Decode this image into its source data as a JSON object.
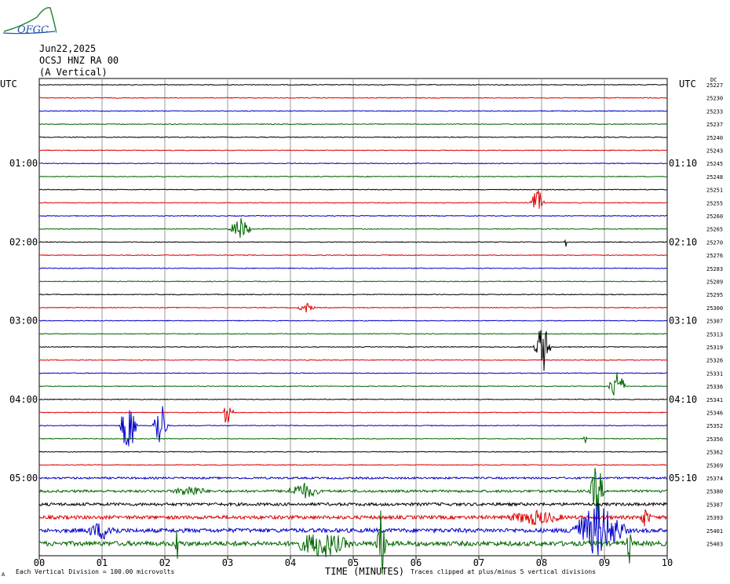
{
  "header": {
    "logo_text": "OFGC",
    "date": "Jun22,2025",
    "station": "OCSJ HNZ RA 00",
    "component": "(A Vertical)"
  },
  "left_axis_label": "UTC",
  "right_axis_label": "UTC",
  "corner_label": "DC",
  "footer": {
    "left_note": "Each Vertical Division =  100.00 microvolts",
    "right_note": "Traces clipped at plus/minus 5 vertical divisions",
    "corner_mark": "A"
  },
  "colors": {
    "black": "#000000",
    "red": "#dd0000",
    "blue": "#0000cc",
    "green": "#006400",
    "grid": "#9a9a9a"
  },
  "chart_data": {
    "type": "line",
    "title": "OCSJ HNZ RA 00 (A Vertical)",
    "xlabel": "TIME (MINUTES)",
    "xlim": [
      0,
      10
    ],
    "x_ticks": [
      "00",
      "01",
      "02",
      "03",
      "04",
      "05",
      "06",
      "07",
      "08",
      "09",
      "10"
    ],
    "trace_minutes": 10,
    "trace_count": 36,
    "trace_color_cycle": [
      "black",
      "red",
      "blue",
      "green"
    ],
    "left_time_labels": [
      {
        "trace": 6,
        "text": "01:00"
      },
      {
        "trace": 12,
        "text": "02:00"
      },
      {
        "trace": 18,
        "text": "03:00"
      },
      {
        "trace": 24,
        "text": "04:00"
      },
      {
        "trace": 30,
        "text": "05:00"
      }
    ],
    "right_time_labels": [
      {
        "trace": 6,
        "text": "01:10"
      },
      {
        "trace": 12,
        "text": "02:10"
      },
      {
        "trace": 18,
        "text": "03:10"
      },
      {
        "trace": 24,
        "text": "04:10"
      },
      {
        "trace": 30,
        "text": "05:10"
      }
    ],
    "dc_offsets": [
      25227,
      25230,
      25233,
      25237,
      25240,
      25243,
      25245,
      25248,
      25251,
      25255,
      25260,
      25265,
      25270,
      25276,
      25283,
      25289,
      25295,
      25300,
      25307,
      25313,
      25319,
      25326,
      25331,
      25336,
      25341,
      25346,
      25352,
      25356,
      25362,
      25369,
      25374,
      25380,
      25387,
      25393,
      25401,
      25403
    ],
    "events": [
      {
        "trace": 9,
        "minute": 7.93,
        "amplitude": 1.2,
        "duration": 0.12
      },
      {
        "trace": 11,
        "minute": 3.2,
        "amplitude": 0.9,
        "duration": 0.2
      },
      {
        "trace": 12,
        "minute": 8.38,
        "amplitude": 0.7,
        "duration": 0.02
      },
      {
        "trace": 17,
        "minute": 4.25,
        "amplitude": 0.4,
        "duration": 0.15
      },
      {
        "trace": 20,
        "minute": 8.02,
        "amplitude": 2.1,
        "duration": 0.15
      },
      {
        "trace": 23,
        "minute": 9.2,
        "amplitude": 1.4,
        "duration": 0.15
      },
      {
        "trace": 25,
        "minute": 3.0,
        "amplitude": 1.6,
        "duration": 0.1
      },
      {
        "trace": 26,
        "minute": 1.42,
        "amplitude": 2.5,
        "duration": 0.15
      },
      {
        "trace": 26,
        "minute": 1.93,
        "amplitude": 2.2,
        "duration": 0.13
      },
      {
        "trace": 27,
        "minute": 8.7,
        "amplitude": 0.4,
        "duration": 0.04
      },
      {
        "trace": 31,
        "minute": 8.88,
        "amplitude": 2.5,
        "duration": 0.12
      },
      {
        "trace": 31,
        "minute": 4.2,
        "amplitude": 0.6,
        "duration": 0.3
      },
      {
        "trace": 31,
        "minute": 2.4,
        "amplitude": 0.4,
        "duration": 0.3
      },
      {
        "trace": 33,
        "minute": 9.65,
        "amplitude": 0.7,
        "duration": 0.1
      },
      {
        "trace": 33,
        "minute": 7.9,
        "amplitude": 0.5,
        "duration": 0.5
      },
      {
        "trace": 34,
        "minute": 8.9,
        "amplitude": 2.0,
        "duration": 0.5
      },
      {
        "trace": 34,
        "minute": 1.0,
        "amplitude": 0.6,
        "duration": 0.3
      },
      {
        "trace": 35,
        "minute": 5.45,
        "amplitude": 2.8,
        "duration": 0.1
      },
      {
        "trace": 35,
        "minute": 4.5,
        "amplitude": 1.0,
        "duration": 0.5
      },
      {
        "trace": 35,
        "minute": 2.2,
        "amplitude": 1.3,
        "duration": 0.05
      },
      {
        "trace": 35,
        "minute": 9.4,
        "amplitude": 1.5,
        "duration": 0.05
      }
    ]
  }
}
